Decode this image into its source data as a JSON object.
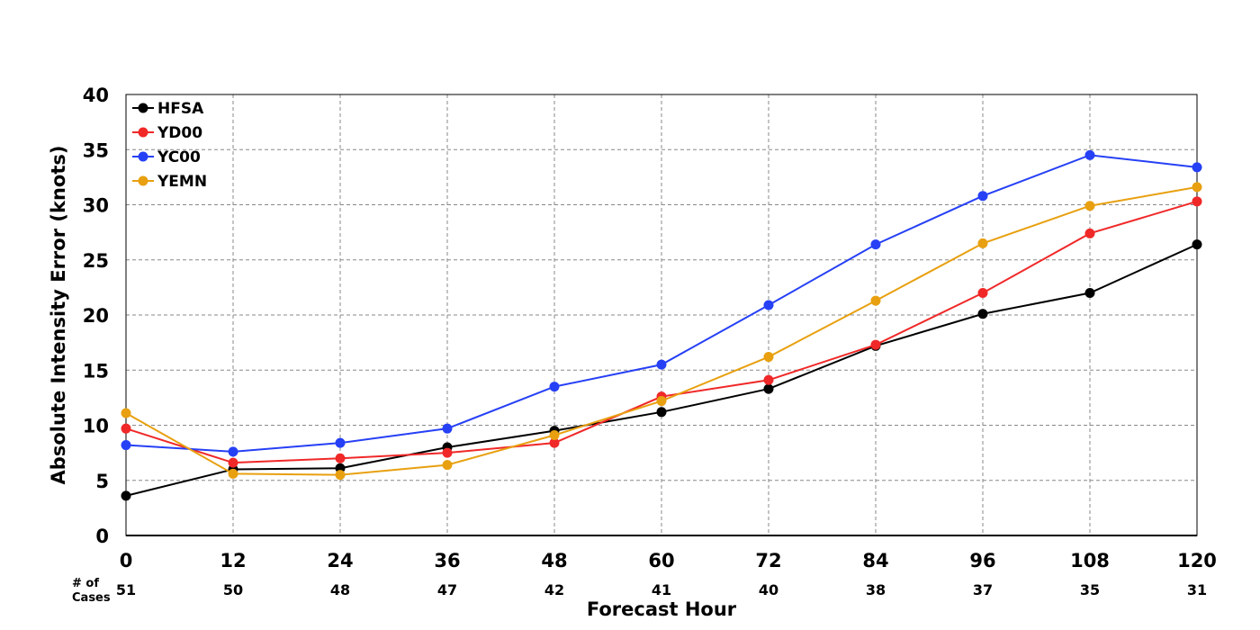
{
  "chart_data": {
    "type": "line",
    "title": "",
    "xlabel": "Forecast Hour",
    "ylabel": "Absolute Intensity Error (knots)",
    "x": [
      0,
      12,
      24,
      36,
      48,
      60,
      72,
      84,
      96,
      108,
      120
    ],
    "x_tick_labels": [
      "0",
      "12",
      "24",
      "36",
      "48",
      "60",
      "72",
      "84",
      "96",
      "108",
      "120"
    ],
    "xlim": [
      0,
      120
    ],
    "ylim": [
      0,
      40
    ],
    "y_ticks": [
      0,
      5,
      10,
      15,
      20,
      25,
      30,
      35,
      40
    ],
    "y_tick_labels": [
      "0",
      "5",
      "10",
      "15",
      "20",
      "25",
      "30",
      "35",
      "40"
    ],
    "grid": true,
    "legend_position": "top-left",
    "cases_title": [
      "# of",
      "Cases"
    ],
    "cases": [
      "51",
      "50",
      "48",
      "47",
      "42",
      "41",
      "40",
      "38",
      "37",
      "35",
      "31"
    ],
    "series": [
      {
        "name": "HFSA",
        "color": "#000000",
        "values": [
          3.6,
          6.0,
          6.1,
          8.0,
          9.5,
          11.2,
          13.3,
          17.2,
          20.1,
          22.0,
          26.4
        ]
      },
      {
        "name": "YD00",
        "color": "#f02828",
        "values": [
          9.7,
          6.6,
          7.0,
          7.5,
          8.4,
          12.6,
          14.1,
          17.3,
          22.0,
          27.4,
          30.3
        ]
      },
      {
        "name": "YC00",
        "color": "#2640f5",
        "values": [
          8.2,
          7.6,
          8.4,
          9.7,
          13.5,
          15.5,
          20.9,
          26.4,
          30.8,
          34.5,
          33.4
        ]
      },
      {
        "name": "YEMN",
        "color": "#e8a010",
        "values": [
          11.1,
          5.6,
          5.5,
          6.4,
          9.1,
          12.2,
          16.2,
          21.3,
          26.5,
          29.9,
          31.6
        ]
      }
    ]
  }
}
